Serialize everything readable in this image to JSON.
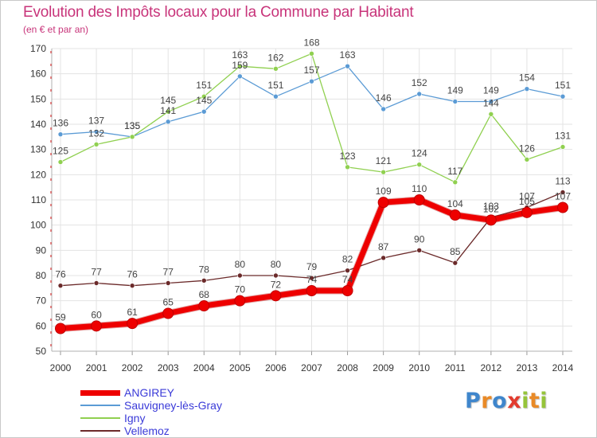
{
  "title": "Evolution des Impôts locaux pour la Commune par Habitant",
  "subtitle": "(en € et par an)",
  "logo_text": [
    "P",
    "r",
    "o",
    "x",
    "i",
    "t",
    "i"
  ],
  "logo_colors": [
    "#3f86cc",
    "#e98a27",
    "#3f86cc",
    "#e23b2e",
    "#96c43a",
    "#e98a27",
    "#96c43a"
  ],
  "chart_data": {
    "type": "line",
    "title": "Evolution des Impôts locaux pour la Commune par Habitant",
    "xlabel": "",
    "ylabel": "(en € et par an)",
    "categories": [
      "2000",
      "2001",
      "2002",
      "2003",
      "2004",
      "2005",
      "2006",
      "2007",
      "2008",
      "2009",
      "2010",
      "2011",
      "2012",
      "2013",
      "2014"
    ],
    "ylim": [
      50,
      170
    ],
    "yticks": [
      "50",
      "60",
      "70",
      "80",
      "90",
      "100",
      "110",
      "120",
      "130",
      "140",
      "150",
      "160",
      "170"
    ],
    "grid": true,
    "series": [
      {
        "name": "ANGIREY",
        "color": "#ee0000",
        "width": 7,
        "values": [
          59,
          60,
          61,
          65,
          68,
          70,
          72,
          74,
          74,
          109,
          110,
          104,
          102,
          105,
          107
        ],
        "labels": [
          "59",
          "60",
          "61",
          "65",
          "68",
          "70",
          "72",
          "74",
          "74",
          "109",
          "110",
          "104",
          "102",
          "105",
          "107"
        ]
      },
      {
        "name": "Sauvigney-lès-Gray",
        "color": "#5b9bd5",
        "width": 1.3,
        "values": [
          136,
          137,
          135,
          141,
          145,
          159,
          151,
          157,
          163,
          146,
          152,
          149,
          149,
          154,
          151
        ],
        "labels": [
          "136",
          "137",
          "135",
          "141",
          "145",
          "159",
          "151",
          "157",
          "163",
          "146",
          "152",
          "149",
          "149",
          "154",
          "151"
        ]
      },
      {
        "name": "Igny",
        "color": "#90d050",
        "width": 1.3,
        "values": [
          125,
          132,
          135,
          145,
          151,
          163,
          162,
          168,
          123,
          121,
          124,
          117,
          144,
          126,
          131
        ],
        "labels": [
          "125",
          "132",
          "135",
          "145",
          "151",
          "163",
          "162",
          "168",
          "123",
          "121",
          "124",
          "117",
          "144",
          "126",
          "131"
        ]
      },
      {
        "name": "Vellemoz",
        "color": "#6b2a2a",
        "width": 1.3,
        "values": [
          76,
          77,
          76,
          77,
          78,
          80,
          80,
          79,
          82,
          87,
          90,
          85,
          103,
          107,
          113
        ],
        "labels": [
          "76",
          "77",
          "76",
          "77",
          "78",
          "80",
          "80",
          "79",
          "82",
          "87",
          "90",
          "85",
          "103",
          "107",
          "113"
        ]
      }
    ]
  },
  "legend": [
    {
      "name": "ANGIREY",
      "color": "#ee0000",
      "width": 7
    },
    {
      "name": "Sauvigney-lès-Gray",
      "color": "#5b9bd5",
      "width": 2
    },
    {
      "name": "Igny",
      "color": "#90d050",
      "width": 2
    },
    {
      "name": "Vellemoz",
      "color": "#6b2a2a",
      "width": 2
    }
  ]
}
